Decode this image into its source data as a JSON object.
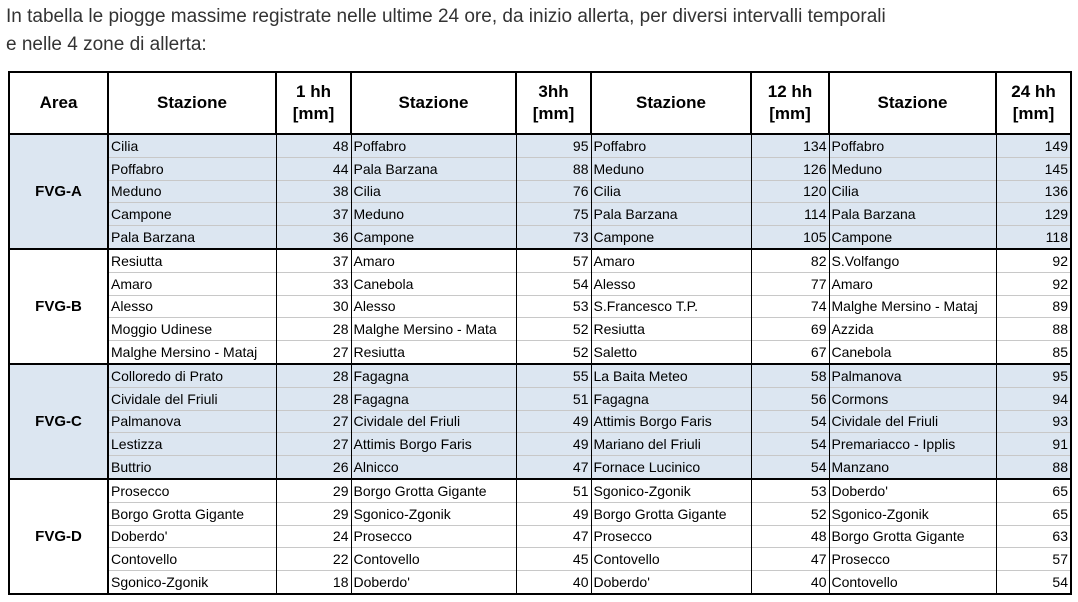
{
  "intro": [
    "In tabella le piogge massime registrate nelle ultime 24 ore, da inizio allerta, per diversi intervalli temporali",
    "e nelle 4 zone di allerta:"
  ],
  "table": {
    "headers": [
      [
        "Area"
      ],
      [
        "Stazione"
      ],
      [
        "1 hh",
        "[mm]"
      ],
      [
        "Stazione"
      ],
      [
        "3hh",
        "[mm]"
      ],
      [
        "Stazione"
      ],
      [
        "12 hh",
        "[mm]"
      ],
      [
        "Stazione"
      ],
      [
        "24 hh",
        "[mm]"
      ]
    ],
    "groups": [
      {
        "area": "FVG-A",
        "rows": [
          [
            "Cilia",
            48,
            "Poffabro",
            95,
            "Poffabro",
            134,
            "Poffabro",
            149
          ],
          [
            "Poffabro",
            44,
            "Pala Barzana",
            88,
            "Meduno",
            126,
            "Meduno",
            145
          ],
          [
            "Meduno",
            38,
            "Cilia",
            76,
            "Cilia",
            120,
            "Cilia",
            136
          ],
          [
            "Campone",
            37,
            "Meduno",
            75,
            "Pala Barzana",
            114,
            "Pala Barzana",
            129
          ],
          [
            "Pala Barzana",
            36,
            "Campone",
            73,
            "Campone",
            105,
            "Campone",
            118
          ]
        ]
      },
      {
        "area": "FVG-B",
        "rows": [
          [
            "Resiutta",
            37,
            "Amaro",
            57,
            "Amaro",
            82,
            "S.Volfango",
            92
          ],
          [
            "Amaro",
            33,
            "Canebola",
            54,
            "Alesso",
            77,
            "Amaro",
            92
          ],
          [
            "Alesso",
            30,
            "Alesso",
            53,
            "S.Francesco T.P.",
            74,
            "Malghe Mersino - Mataj",
            89
          ],
          [
            "Moggio Udinese",
            28,
            "Malghe Mersino - Mata",
            52,
            "Resiutta",
            69,
            "Azzida",
            88
          ],
          [
            "Malghe Mersino - Mataj",
            27,
            "Resiutta",
            52,
            "Saletto",
            67,
            "Canebola",
            85
          ]
        ]
      },
      {
        "area": "FVG-C",
        "rows": [
          [
            "Colloredo di Prato",
            28,
            "Fagagna",
            55,
            "La Baita Meteo",
            58,
            "Palmanova",
            95
          ],
          [
            "Cividale del Friuli",
            28,
            "Fagagna",
            51,
            "Fagagna",
            56,
            "Cormons",
            94
          ],
          [
            "Palmanova",
            27,
            "Cividale del Friuli",
            49,
            "Attimis Borgo Faris",
            54,
            "Cividale del Friuli",
            93
          ],
          [
            "Lestizza",
            27,
            "Attimis Borgo Faris",
            49,
            "Mariano del Friuli",
            54,
            "Premariacco - Ipplis",
            91
          ],
          [
            "Buttrio",
            26,
            "Alnicco",
            47,
            "Fornace Lucinico",
            54,
            "Manzano",
            88
          ]
        ]
      },
      {
        "area": "FVG-D",
        "rows": [
          [
            "Prosecco",
            29,
            "Borgo Grotta Gigante",
            51,
            "Sgonico-Zgonik",
            53,
            "Doberdo'",
            65
          ],
          [
            "Borgo Grotta Gigante",
            29,
            "Sgonico-Zgonik",
            49,
            "Borgo Grotta Gigante",
            52,
            "Sgonico-Zgonik",
            65
          ],
          [
            "Doberdo'",
            24,
            "Prosecco",
            47,
            "Prosecco",
            48,
            "Borgo Grotta Gigante",
            63
          ],
          [
            "Contovello",
            22,
            "Contovello",
            45,
            "Contovello",
            47,
            "Prosecco",
            57
          ],
          [
            "Sgonico-Zgonik",
            18,
            "Doberdo'",
            40,
            "Doberdo'",
            40,
            "Contovello",
            54
          ]
        ]
      }
    ]
  }
}
